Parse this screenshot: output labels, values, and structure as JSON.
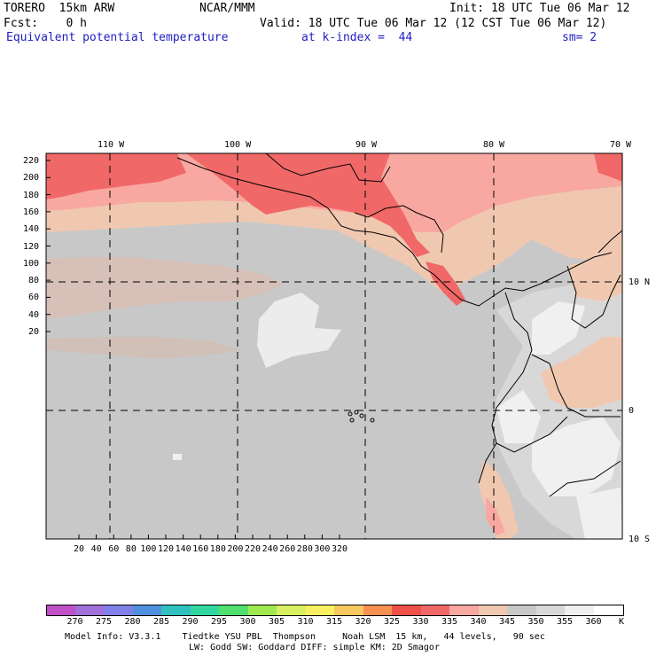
{
  "header": {
    "model": "TORERO  15km ARW",
    "org": "NCAR/MMM",
    "init": "Init: 18 UTC Tue 06 Mar 12",
    "fcst": "Fcst:    0 h",
    "valid": "Valid: 18 UTC Tue 06 Mar 12 (12 CST Tue 06 Mar 12)",
    "field": "Equivalent potential temperature",
    "level": "at k-index =  44",
    "smooth": "sm= 2"
  },
  "map": {
    "lon_labels": [
      "110 W",
      "100 W",
      "90 W",
      "80 W",
      "70 W"
    ],
    "lat_labels": [
      "10 N",
      "0",
      "10 S"
    ],
    "y_ticks": [
      "220",
      "200",
      "180",
      "160",
      "140",
      "120",
      "100",
      "80",
      "60",
      "40",
      "20"
    ],
    "x_ticks": [
      "20",
      "40",
      "60",
      "80",
      "100",
      "120",
      "140",
      "160",
      "180",
      "200",
      "220",
      "240",
      "260",
      "280",
      "300",
      "320"
    ]
  },
  "colorbar": {
    "labels": [
      "270",
      "275",
      "280",
      "285",
      "290",
      "295",
      "300",
      "305",
      "310",
      "315",
      "320",
      "325",
      "330",
      "335",
      "340",
      "345",
      "350",
      "355",
      "360"
    ],
    "unit": "K",
    "colors": [
      "#c050c8",
      "#a070d8",
      "#8080e8",
      "#5090e0",
      "#30c0c0",
      "#30d8a0",
      "#50e070",
      "#a0e850",
      "#d8f060",
      "#f8f060",
      "#f8c860",
      "#f89050",
      "#f05048",
      "#f06868",
      "#f8a8a0",
      "#f0c8b0",
      "#c8c8c8",
      "#d8d8d8",
      "#f0f0f0",
      "#ffffff"
    ]
  },
  "footer": {
    "line1": "Model Info: V3.3.1    Tiedtke YSU PBL  Thompson     Noah LSM  15 km,   44 levels,   90 sec",
    "line2": "LW: Godd SW: Goddard DIFF: simple KM: 2D Smagor"
  }
}
